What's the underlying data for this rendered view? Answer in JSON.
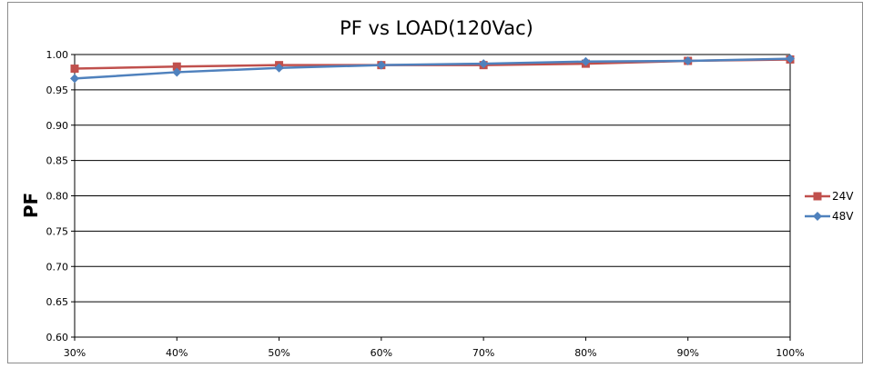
{
  "chart_data": {
    "type": "line",
    "title": "PF vs LOAD(120Vac)",
    "xlabel": "",
    "ylabel": "PF",
    "categories": [
      "30%",
      "40%",
      "50%",
      "60%",
      "70%",
      "80%",
      "90%",
      "100%"
    ],
    "ylim": [
      0.6,
      1.0
    ],
    "yticks": [
      "0.60",
      "0.65",
      "0.70",
      "0.75",
      "0.80",
      "0.85",
      "0.90",
      "0.95",
      "1.00"
    ],
    "grid": true,
    "legend_position": "right",
    "series": [
      {
        "name": "24V",
        "color": "#c0504d",
        "marker": "square",
        "values": [
          0.98,
          0.983,
          0.985,
          0.985,
          0.985,
          0.987,
          0.991,
          0.993
        ]
      },
      {
        "name": "48V",
        "color": "#4f81bd",
        "marker": "diamond",
        "values": [
          0.966,
          0.975,
          0.981,
          0.985,
          0.987,
          0.99,
          0.991,
          0.994
        ]
      }
    ]
  }
}
